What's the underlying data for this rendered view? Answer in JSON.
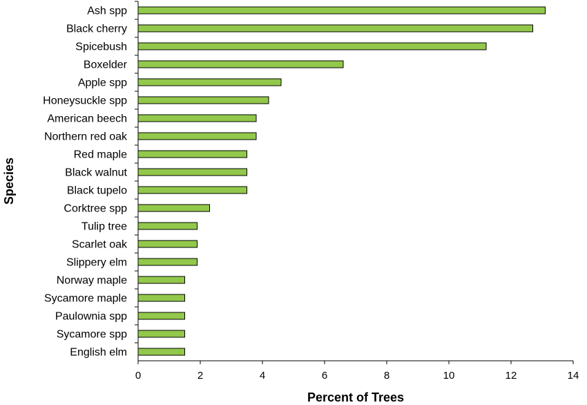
{
  "chart_data": {
    "type": "bar",
    "orientation": "horizontal",
    "categories": [
      "Ash spp",
      "Black cherry",
      "Spicebush",
      "Boxelder",
      "Apple spp",
      "Honeysuckle spp",
      "American beech",
      "Northern red oak",
      "Red maple",
      "Black walnut",
      "Black tupelo",
      "Corktree spp",
      "Tulip tree",
      "Scarlet oak",
      "Slippery elm",
      "Norway maple",
      "Sycamore maple",
      "Paulownia spp",
      "Sycamore spp",
      "English elm"
    ],
    "values": [
      13.1,
      12.7,
      11.2,
      6.6,
      4.6,
      4.2,
      3.8,
      3.8,
      3.5,
      3.5,
      3.5,
      2.3,
      1.9,
      1.9,
      1.9,
      1.5,
      1.5,
      1.5,
      1.5,
      1.5
    ],
    "xlabel": "Percent of Trees",
    "ylabel": "Species",
    "xlim": [
      0,
      14
    ],
    "xticks": [
      0,
      2,
      4,
      6,
      8,
      10,
      12,
      14
    ],
    "grid": false,
    "legend": "none",
    "bar_color": "#92C84B",
    "bar_edge_color": "#000000"
  }
}
